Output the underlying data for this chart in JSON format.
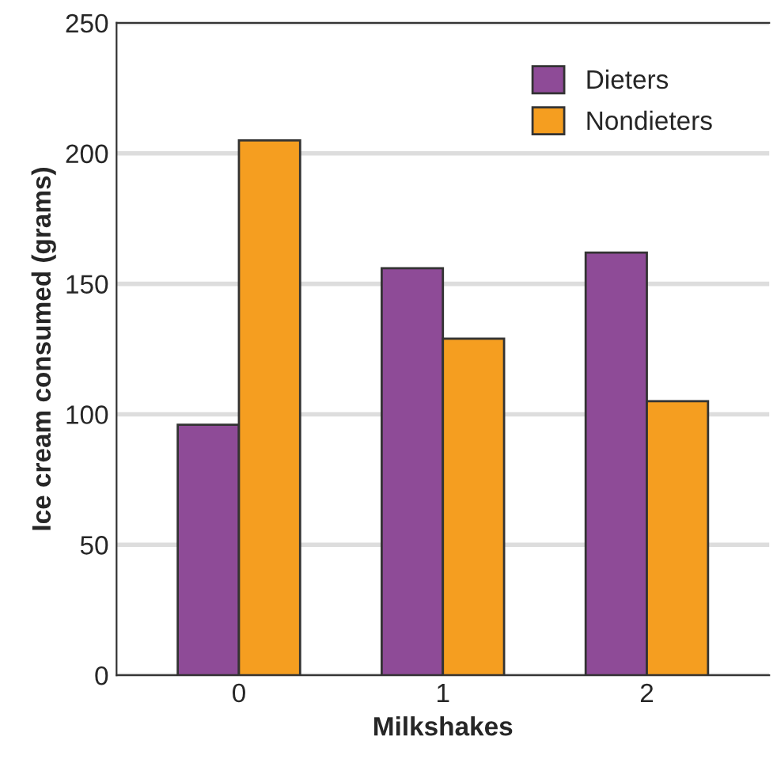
{
  "chart_data": {
    "type": "bar",
    "xlabel": "Milkshakes",
    "ylabel": "Ice cream consumed (grams)",
    "categories": [
      "0",
      "1",
      "2"
    ],
    "series": [
      {
        "name": "Dieters",
        "color": "#8e4b97",
        "values": [
          96,
          156,
          162
        ]
      },
      {
        "name": "Nondieters",
        "color": "#f59e20",
        "values": [
          205,
          129,
          105
        ]
      }
    ],
    "ylim": [
      0,
      250
    ],
    "yticks": [
      0,
      50,
      100,
      150,
      200,
      250
    ],
    "grid": "y",
    "legend": "top right"
  }
}
